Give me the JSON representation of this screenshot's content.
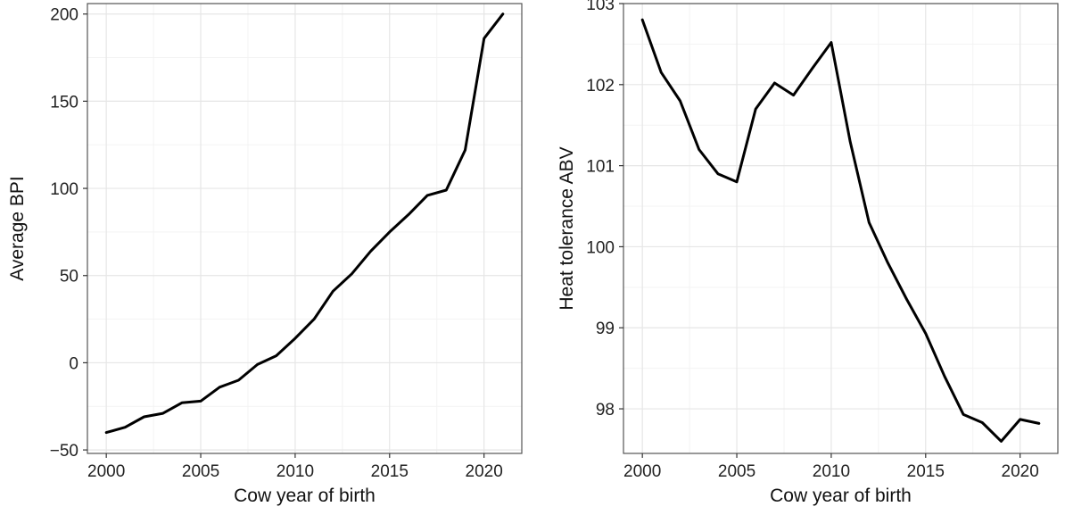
{
  "chart_data": [
    {
      "type": "line",
      "title": "",
      "xlabel": "Cow year of birth",
      "ylabel": "Average BPI",
      "xlim": [
        1999,
        2022
      ],
      "ylim": [
        -52,
        206
      ],
      "xticks": [
        2000,
        2005,
        2010,
        2015,
        2020
      ],
      "yticks": [
        -50,
        0,
        50,
        100,
        150,
        200
      ],
      "ytick_labels": [
        "−50",
        "0",
        "50",
        "100",
        "150",
        "200"
      ],
      "grid": true,
      "legend": "none",
      "line_color": "#000000",
      "x": [
        2000,
        2001,
        2002,
        2003,
        2004,
        2005,
        2006,
        2007,
        2008,
        2009,
        2010,
        2011,
        2012,
        2013,
        2014,
        2015,
        2016,
        2017,
        2018,
        2019,
        2020,
        2021
      ],
      "values": [
        -40,
        -37,
        -31,
        -29,
        -23,
        -22,
        -14,
        -10,
        -1,
        4,
        14,
        25,
        41,
        51,
        64,
        75,
        85,
        96,
        99,
        122,
        186,
        200
      ]
    },
    {
      "type": "line",
      "title": "",
      "xlabel": "Cow year of birth",
      "ylabel": "Heat tolerance ABV",
      "xlim": [
        1999,
        2022
      ],
      "ylim": [
        97.45,
        103.0
      ],
      "xticks": [
        2000,
        2005,
        2010,
        2015,
        2020
      ],
      "yticks": [
        98,
        99,
        100,
        101,
        102,
        103
      ],
      "ytick_labels": [
        "98",
        "99",
        "100",
        "101",
        "102",
        "103"
      ],
      "grid": true,
      "legend": "none",
      "line_color": "#000000",
      "x": [
        2000,
        2001,
        2002,
        2003,
        2004,
        2005,
        2006,
        2007,
        2008,
        2009,
        2010,
        2011,
        2012,
        2013,
        2014,
        2015,
        2016,
        2017,
        2018,
        2019,
        2020,
        2021
      ],
      "values": [
        102.8,
        102.15,
        101.8,
        101.2,
        100.9,
        100.8,
        101.7,
        102.02,
        101.87,
        102.2,
        102.52,
        101.3,
        100.3,
        99.8,
        99.35,
        98.93,
        98.4,
        97.93,
        97.83,
        97.6,
        97.87,
        97.82
      ]
    }
  ]
}
